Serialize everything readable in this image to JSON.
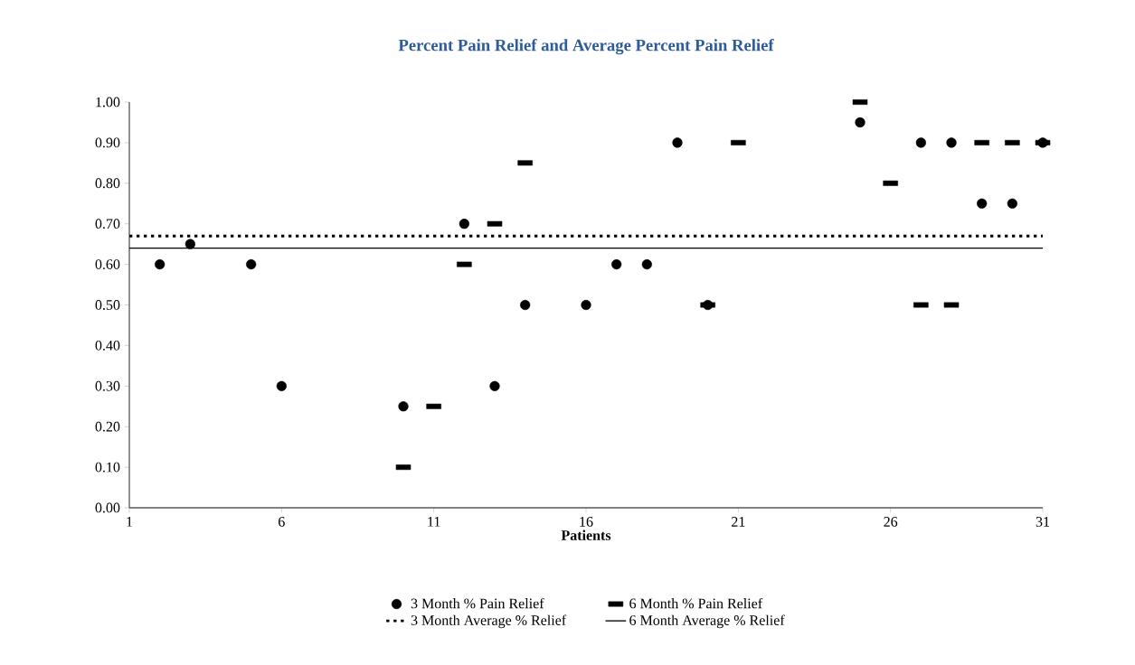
{
  "chart_data": {
    "type": "scatter",
    "title": "Percent Pain Relief and Average Percent Pain Relief",
    "xlabel": "Patients",
    "xlim": [
      1,
      31
    ],
    "xticks": [
      1,
      6,
      11,
      16,
      21,
      26,
      31
    ],
    "ylim": [
      0,
      1
    ],
    "yticks": [
      {
        "value": 0,
        "label": "0.00"
      },
      {
        "value": 0.1,
        "label": "0.10"
      },
      {
        "value": 0.2,
        "label": "0.20"
      },
      {
        "value": 0.3,
        "label": "0.30"
      },
      {
        "value": 0.4,
        "label": "0.40"
      },
      {
        "value": 0.5,
        "label": "0.50"
      },
      {
        "value": 0.6,
        "label": "0.60"
      },
      {
        "value": 0.7,
        "label": "0.70"
      },
      {
        "value": 0.8,
        "label": "0.80"
      },
      {
        "value": 0.9,
        "label": "0.90"
      },
      {
        "value": 1,
        "label": "1.00"
      }
    ],
    "grid": false,
    "legend": "bottom",
    "series": [
      {
        "name": "3 Month % Pain Relief",
        "marker": "circle",
        "color": "#000000",
        "x": [
          2,
          3,
          5,
          6,
          10,
          12,
          13,
          14,
          16,
          17,
          18,
          19,
          20,
          25,
          27,
          28,
          29,
          30,
          31
        ],
        "values": [
          0.6,
          0.65,
          0.6,
          0.3,
          0.25,
          0.7,
          0.3,
          0.5,
          0.5,
          0.6,
          0.6,
          0.9,
          0.5,
          0.95,
          0.9,
          0.9,
          0.75,
          0.75,
          0.9
        ]
      },
      {
        "name": "6 Month % Pain Relief",
        "marker": "square",
        "color": "#000000",
        "x": [
          10,
          11,
          12,
          13,
          14,
          20,
          21,
          25,
          26,
          27,
          28,
          29,
          30,
          31
        ],
        "values": [
          0.1,
          0.25,
          0.6,
          0.7,
          0.85,
          0.5,
          0.9,
          1.0,
          0.8,
          0.5,
          0.5,
          0.9,
          0.9,
          0.9
        ]
      },
      {
        "name": "3 Month Average % Relief",
        "type": "line",
        "line_style": "dotted",
        "marker": "none",
        "color": "#000000",
        "x": [
          1,
          31
        ],
        "values": [
          0.67,
          0.67
        ]
      },
      {
        "name": "6 Month Average % Relief",
        "type": "line",
        "line_style": "solid",
        "marker": "none",
        "color": "#000000",
        "x": [
          1,
          31
        ],
        "values": [
          0.64,
          0.64
        ]
      }
    ]
  }
}
